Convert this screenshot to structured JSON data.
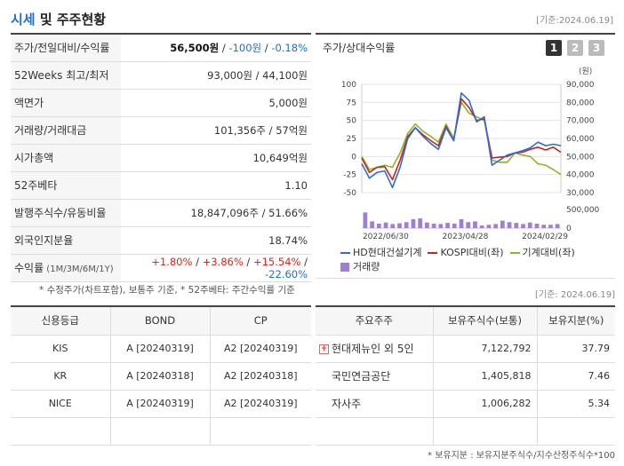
{
  "header": {
    "title_part1": "시세",
    "title_part2": " 및 주주현황",
    "date": "[기준:2024.06.19]"
  },
  "info_rows": [
    {
      "label": "주가/전일대비/수익률",
      "price": "56,500원",
      "sep1": " / ",
      "change": "-100원",
      "sep2": " / ",
      "rate": "-0.18%"
    },
    {
      "label": "52Weeks 최고/최저",
      "value": "93,000원 / 44,100원"
    },
    {
      "label": "액면가",
      "value": "5,000원"
    },
    {
      "label": "거래량/거래대금",
      "value": "101,356주 / 57억원"
    },
    {
      "label": "시가총액",
      "value": "10,649억원"
    },
    {
      "label": "52주베타",
      "value": "1.10"
    },
    {
      "label": "발행주식수/유동비율",
      "value": "18,847,096주 / 51.66%"
    },
    {
      "label": "외국인지분율",
      "value": "18.74%"
    },
    {
      "label": "수익률",
      "label_sub": " (1M/3M/6M/1Y)",
      "r1": "+1.80%",
      "r2": "+3.86%",
      "r3": "+15.54%",
      "r4": "-22.60%",
      "sep": " / "
    }
  ],
  "chart": {
    "title": "주가/상대수익률",
    "tabs": [
      "1",
      "2",
      "3"
    ],
    "active_tab": 0,
    "unit_right": "(원)"
  },
  "chart_data": {
    "type": "line",
    "x_ticks": [
      "2022/06/30",
      "2023/04/28",
      "2024/02/29"
    ],
    "y_left_ticks": [
      100,
      75,
      50,
      25,
      0,
      -25,
      -50
    ],
    "y_left_range": [
      -50,
      100
    ],
    "y_right_ticks": [
      "90,000",
      "80,000",
      "70,000",
      "60,000",
      "50,000",
      "40,000",
      "30,000"
    ],
    "y_right_range": [
      30000,
      90000
    ],
    "volume_ticks": [
      "500,000",
      "0"
    ],
    "volume_range": [
      0,
      500000
    ],
    "series": [
      {
        "name": "HD현대건설기계",
        "color": "#2d6bd8",
        "values": [
          -10,
          -30,
          -22,
          -20,
          -43,
          -15,
          25,
          40,
          28,
          18,
          10,
          40,
          22,
          88,
          78,
          48,
          55,
          -12,
          -5,
          2,
          5,
          8,
          12,
          20,
          15,
          17,
          15
        ]
      },
      {
        "name": "KOSPI대비(좌)",
        "color": "#c8261c",
        "values": [
          -2,
          -22,
          -15,
          -14,
          -32,
          -5,
          28,
          40,
          30,
          22,
          15,
          42,
          22,
          80,
          68,
          50,
          52,
          -2,
          -1,
          0,
          5,
          6,
          10,
          13,
          9,
          13,
          6
        ]
      },
      {
        "name": "기계대비(좌)",
        "color": "#8ab826",
        "values": [
          0,
          -18,
          -15,
          -12,
          -15,
          5,
          32,
          45,
          35,
          28,
          20,
          45,
          25,
          75,
          60,
          55,
          50,
          -5,
          -8,
          -8,
          5,
          2,
          0,
          -10,
          -12,
          -18,
          -25
        ]
      }
    ],
    "volume": {
      "name": "거래량",
      "color": "#9e7fd6",
      "values": [
        420000,
        180000,
        120000,
        150000,
        110000,
        130000,
        160000,
        240000,
        260000,
        150000,
        120000,
        110000,
        140000,
        120000,
        240000,
        160000,
        180000,
        70000,
        90000,
        110000,
        200000,
        160000,
        140000,
        110000,
        150000,
        120000,
        90000,
        90000,
        110000
      ]
    }
  },
  "notes": {
    "note1": "* 수정주가(차트포함), 보통주 기준, * 52주베타: 주간수익률 기준",
    "note2": "[기준: 2024.06.19]",
    "note3": "* 보유지분 : 보유지분주식수/지수산정주식수*100"
  },
  "credit": {
    "headers": [
      "신용등급",
      "BOND",
      "CP"
    ],
    "rows": [
      [
        "KIS",
        "A  [20240319]",
        "A2  [20240319]"
      ],
      [
        "KR",
        "A  [20240318]",
        "A2  [20240318]"
      ],
      [
        "NICE",
        "A  [20240319]",
        "A2  [20240319]"
      ],
      [
        "",
        "",
        ""
      ]
    ]
  },
  "holders": {
    "headers": [
      "주요주주",
      "보유주식수(보통)",
      "보유지분(%)"
    ],
    "rows": [
      {
        "name": "현대제뉴인 외 5인",
        "shares": "7,122,792",
        "pct": "37.79",
        "expand": "+"
      },
      {
        "name": "국민연금공단",
        "shares": "1,405,818",
        "pct": "7.46"
      },
      {
        "name": "자사주",
        "shares": "1,006,282",
        "pct": "5.34"
      }
    ]
  }
}
